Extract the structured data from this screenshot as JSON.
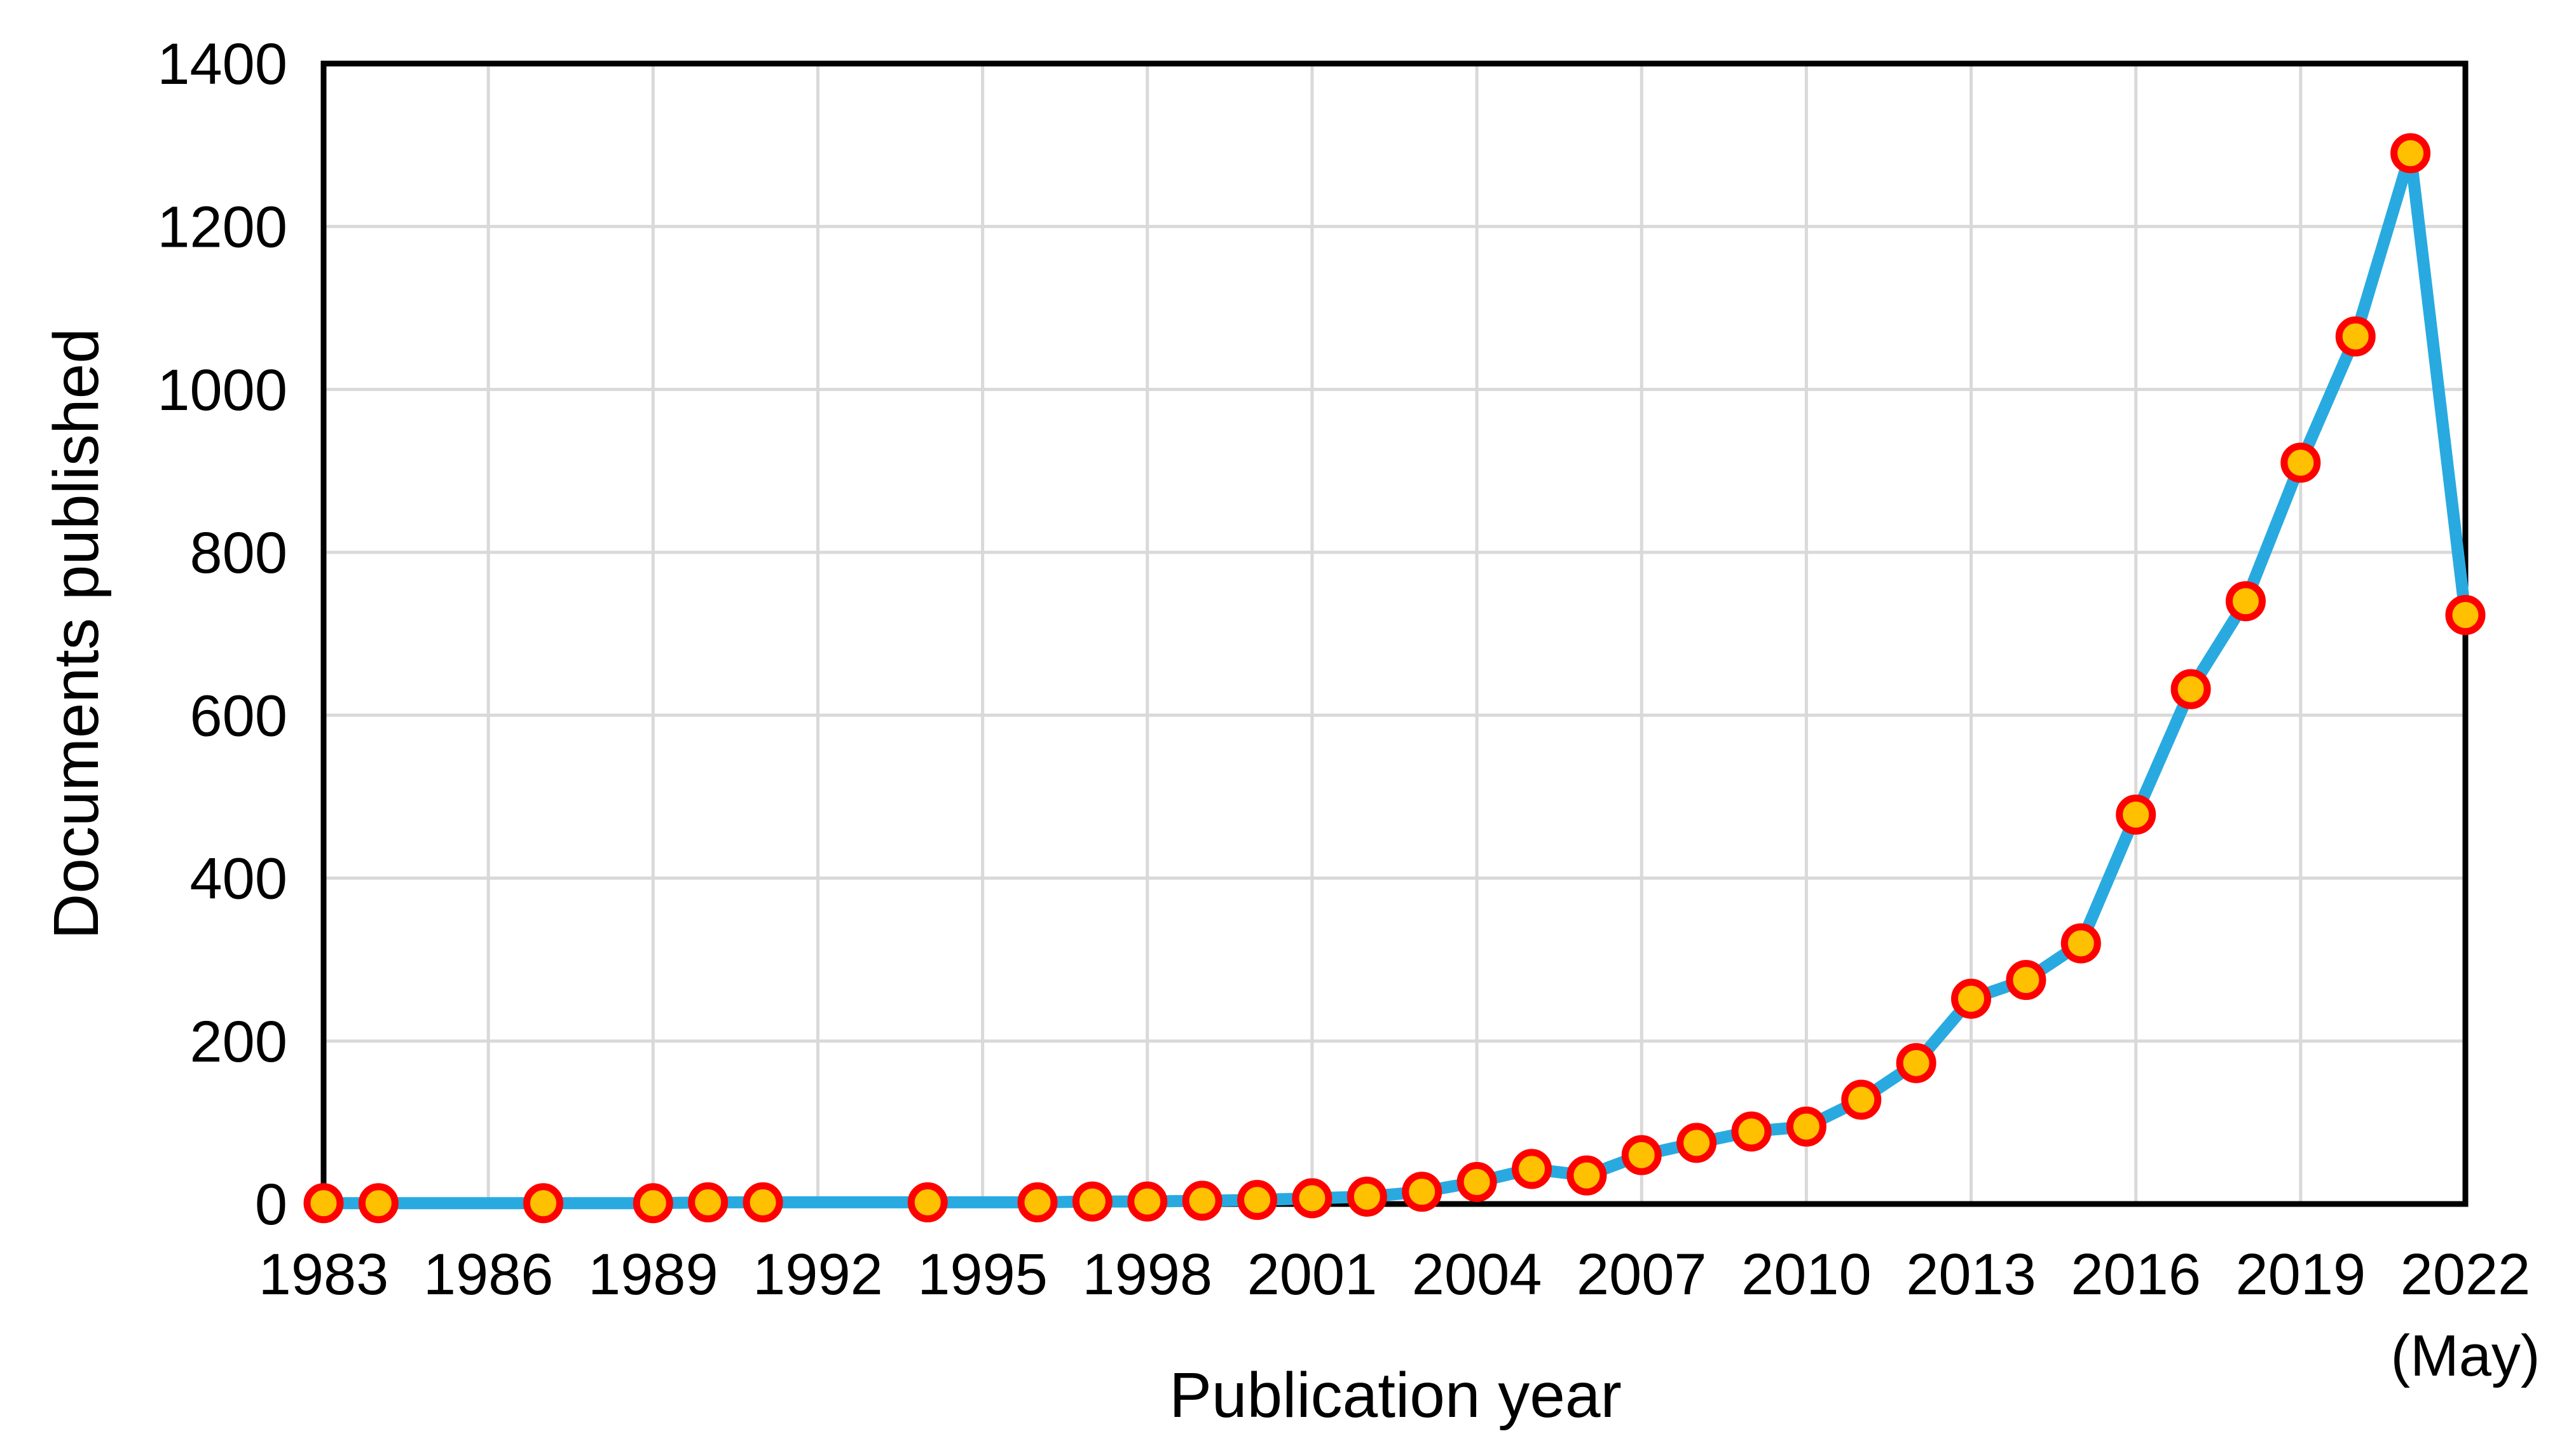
{
  "chart_data": {
    "type": "line",
    "title": "",
    "xlabel": "Publication year",
    "ylabel": "Documents published",
    "xlim": [
      1983,
      2022
    ],
    "ylim": [
      0,
      1400
    ],
    "y_tick_step": 200,
    "grid": true,
    "legend": "none",
    "y_ticks": [
      0,
      200,
      400,
      600,
      800,
      1000,
      1200,
      1400
    ],
    "x_ticks": [
      {
        "year": 1983,
        "label": "1983"
      },
      {
        "year": 1986,
        "label": "1986"
      },
      {
        "year": 1989,
        "label": "1989"
      },
      {
        "year": 1992,
        "label": "1992"
      },
      {
        "year": 1995,
        "label": "1995"
      },
      {
        "year": 1998,
        "label": "1998"
      },
      {
        "year": 2001,
        "label": "2001"
      },
      {
        "year": 2004,
        "label": "2004"
      },
      {
        "year": 2007,
        "label": "2007"
      },
      {
        "year": 2010,
        "label": "2010"
      },
      {
        "year": 2013,
        "label": "2013"
      },
      {
        "year": 2016,
        "label": "2016"
      },
      {
        "year": 2019,
        "label": "2019"
      },
      {
        "year": 2022,
        "label": "2022",
        "note": "(May)"
      }
    ],
    "series": [
      {
        "x": [
          1983,
          1984,
          1987,
          1989,
          1990,
          1991,
          1994,
          1996,
          1997,
          1998,
          1999,
          2000,
          2001,
          2002,
          2003,
          2004,
          2005,
          2006,
          2007,
          2008,
          2009,
          2010,
          2011,
          2012,
          2013,
          2014,
          2015,
          2016,
          2017,
          2018,
          2019,
          2020,
          2021,
          2022
        ],
        "y": [
          1,
          1,
          1,
          1,
          2,
          2,
          2,
          2,
          3,
          3,
          4,
          5,
          7,
          9,
          15,
          27,
          43,
          35,
          60,
          75,
          89,
          95,
          128,
          173,
          252,
          275,
          320,
          478,
          632,
          740,
          910,
          1065,
          1290,
          723
        ]
      }
    ],
    "colors": {
      "line": "#28AAE1",
      "marker_fill": "#FFC000",
      "marker_stroke": "#FF0000",
      "grid": "#D9D9D9",
      "axis": "#000000",
      "text": "#000000",
      "background": "#FFFFFF"
    }
  }
}
